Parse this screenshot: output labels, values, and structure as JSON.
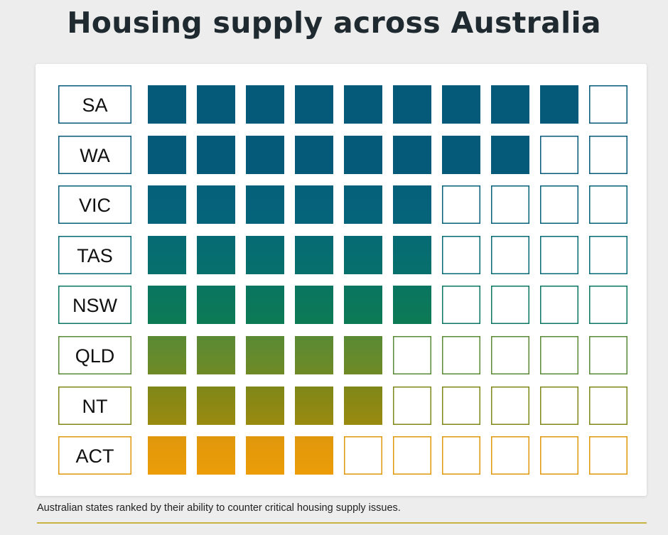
{
  "title": "Housing supply across Australia",
  "caption": "Australian states ranked by their ability to counter critical housing supply issues.",
  "chart_data": {
    "type": "waffle",
    "max_per_row": 10,
    "categories": [
      "SA",
      "WA",
      "VIC",
      "TAS",
      "NSW",
      "QLD",
      "NT",
      "ACT"
    ],
    "values": [
      9,
      8,
      6,
      6,
      6,
      5,
      5,
      4
    ],
    "colors": [
      "#055a7a",
      "#055a7a",
      "#05607a",
      "#066a74",
      "#0a7560",
      "#5a8a35",
      "#7f8718",
      "#e0980c"
    ],
    "colors_bottom": [
      "#055a7a",
      "#055a7a",
      "#05647a",
      "#07706c",
      "#0d7a55",
      "#6f8a25",
      "#9a8a10",
      "#ec9c08"
    ]
  }
}
